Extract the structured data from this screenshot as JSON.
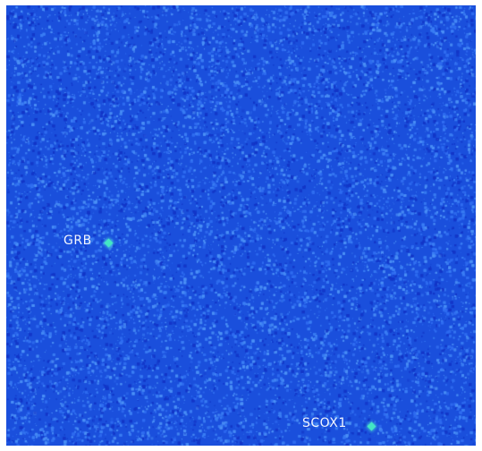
{
  "image": {
    "background_color": "#1a4fdc",
    "noise_colors": [
      "#2f6cf0",
      "#3a7df4",
      "#1336c8",
      "#4a8ff6"
    ],
    "marker_color": "#43e6c4"
  },
  "sources": [
    {
      "label": "GRB"
    },
    {
      "label": "SCOX1"
    }
  ]
}
